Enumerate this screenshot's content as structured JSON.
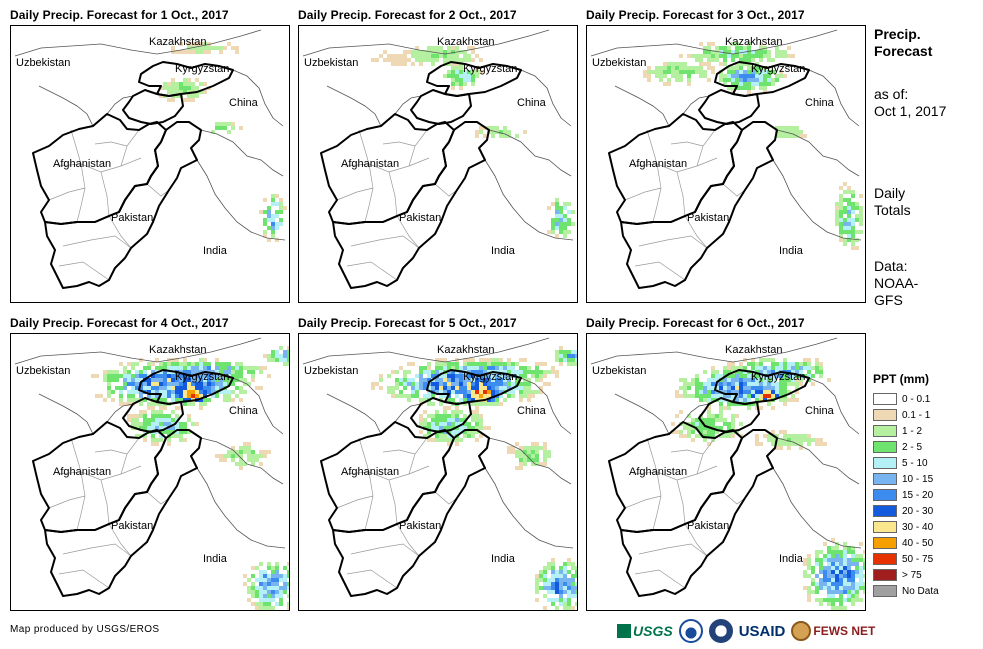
{
  "panels": [
    {
      "title": "Daily Precip. Forecast for 1 Oct., 2017",
      "intensity": 0
    },
    {
      "title": "Daily Precip. Forecast for 2 Oct., 2017",
      "intensity": 1
    },
    {
      "title": "Daily Precip. Forecast for 3 Oct., 2017",
      "intensity": 2
    },
    {
      "title": "Daily Precip. Forecast for 4 Oct., 2017",
      "intensity": 4
    },
    {
      "title": "Daily Precip. Forecast for 5 Oct., 2017",
      "intensity": 4
    },
    {
      "title": "Daily Precip. Forecast for 6 Oct., 2017",
      "intensity": 3
    }
  ],
  "place_labels": {
    "kazakhstan": "Kazakhstan",
    "uzbekistan": "Uzbekistan",
    "kyrgyzstan": "Kyrgyzstan",
    "china": "China",
    "afghanistan": "Afghanistan",
    "pakistan": "Pakistan",
    "india": "India"
  },
  "side_info": {
    "title_line1": "Precip.",
    "title_line2": "Forecast",
    "asof_line1": "as of:",
    "asof_line2": "Oct 1, 2017",
    "totals_line1": "Daily",
    "totals_line2": "Totals",
    "data_line1": "Data:",
    "data_line2": "NOAA-",
    "data_line3": "GFS"
  },
  "legend": {
    "title": "PPT (mm)",
    "items": [
      {
        "label": "0 - 0.1",
        "color": "#ffffff"
      },
      {
        "label": "0.1 - 1",
        "color": "#eed9b4"
      },
      {
        "label": "1 - 2",
        "color": "#b4f0a0"
      },
      {
        "label": "2 - 5",
        "color": "#6ee36e"
      },
      {
        "label": "5 - 10",
        "color": "#b4f0f5"
      },
      {
        "label": "10 - 15",
        "color": "#78b4f0"
      },
      {
        "label": "15 - 20",
        "color": "#3c8cf0"
      },
      {
        "label": "20 - 30",
        "color": "#145adc"
      },
      {
        "label": "30 - 40",
        "color": "#fae68c"
      },
      {
        "label": "40 - 50",
        "color": "#f5a000"
      },
      {
        "label": "50 - 75",
        "color": "#e63200"
      },
      {
        "label": "> 75",
        "color": "#a01e1e"
      },
      {
        "label": "No Data",
        "color": "#a0a0a0"
      }
    ]
  },
  "credit": "Map produced by USGS/EROS",
  "logos": {
    "usgs": "USGS",
    "usaid": "USAID",
    "fews": "FEWS NET"
  }
}
